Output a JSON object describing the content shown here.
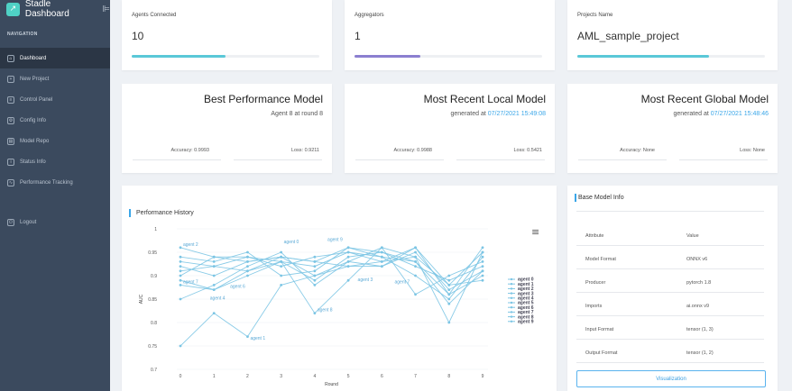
{
  "app": {
    "title": "Stadle Dashboard",
    "logo_glyph": "↗",
    "toggle_glyph": "⊫"
  },
  "nav": {
    "heading": "NAVIGATION",
    "items": [
      {
        "label": "Dashboard",
        "icon": "home-icon",
        "glyph": "⌂",
        "active": true
      },
      {
        "label": "New Project",
        "icon": "plus-icon",
        "glyph": "+"
      },
      {
        "label": "Control Panel",
        "icon": "sliders-icon",
        "glyph": "≡"
      },
      {
        "label": "Config Info",
        "icon": "gear-icon",
        "glyph": "⚙"
      },
      {
        "label": "Model Repo",
        "icon": "database-icon",
        "glyph": "▤"
      },
      {
        "label": "Status Info",
        "icon": "info-icon",
        "glyph": "i"
      },
      {
        "label": "Performance Tracking",
        "icon": "chart-icon",
        "glyph": "∿"
      }
    ],
    "logout": {
      "label": "Logout",
      "icon": "power-icon",
      "glyph": "⏻"
    }
  },
  "stats": [
    {
      "label": "Agents Connected",
      "value": "10",
      "progress": 0.5,
      "color": "#5ac8d8"
    },
    {
      "label": "Aggregators",
      "value": "1",
      "progress": 0.35,
      "color": "#8b7fd0"
    },
    {
      "label": "Projects Name",
      "value": "AML_sample_project",
      "progress": 0.7,
      "color": "#5ac8d8"
    }
  ],
  "models": [
    {
      "title": "Best Performance Model",
      "sub_prefix": "Agent 8 at round 8",
      "date": "",
      "acc_label": "Accuracy:",
      "acc": "0.9993",
      "loss_label": "Loss:",
      "loss": "0.9211"
    },
    {
      "title": "Most Recent Local Model",
      "sub_prefix": "generated at",
      "date": "07/27/2021 15:49:08",
      "acc_label": "Accuracy:",
      "acc": "0.9988",
      "loss_label": "Loss:",
      "loss": "0.5421"
    },
    {
      "title": "Most Recent Global Model",
      "sub_prefix": "generated at",
      "date": "07/27/2021 15:48:46",
      "acc_label": "Accuracy:",
      "acc": "None",
      "loss_label": "Loss:",
      "loss": "None"
    }
  ],
  "perf": {
    "title": "Performance History",
    "menu_glyph": "≡"
  },
  "chart_data": {
    "type": "line",
    "xlabel": "Round",
    "ylabel": "AUC",
    "x": [
      0,
      1,
      2,
      3,
      4,
      5,
      6,
      7,
      8,
      9
    ],
    "ylim": [
      0.7,
      1.0
    ],
    "yticks": [
      "0.7",
      "0.75",
      "0.8",
      "0.85",
      "0.9",
      "0.95",
      "1"
    ],
    "legend_position": "right",
    "color": "#7cc5e4",
    "series": [
      {
        "name": "agent 0",
        "values": [
          0.91,
          0.92,
          0.91,
          0.94,
          0.93,
          0.96,
          0.95,
          0.92,
          0.89,
          0.92
        ]
      },
      {
        "name": "agent 1",
        "values": [
          0.75,
          0.82,
          0.77,
          0.88,
          0.9,
          0.92,
          0.93,
          0.96,
          0.86,
          0.96
        ]
      },
      {
        "name": "agent 2",
        "values": [
          0.96,
          0.94,
          0.93,
          0.94,
          0.9,
          0.93,
          0.92,
          0.95,
          0.87,
          0.91
        ]
      },
      {
        "name": "agent 3",
        "values": [
          0.88,
          0.87,
          0.91,
          0.93,
          0.92,
          0.95,
          0.94,
          0.9,
          0.85,
          0.94
        ]
      },
      {
        "name": "agent 4",
        "values": [
          0.85,
          0.88,
          0.92,
          0.95,
          0.88,
          0.93,
          0.96,
          0.86,
          0.9,
          0.93
        ]
      },
      {
        "name": "agent 5",
        "values": [
          0.9,
          0.94,
          0.94,
          0.92,
          0.94,
          0.95,
          0.93,
          0.94,
          0.88,
          0.95
        ]
      },
      {
        "name": "agent 6",
        "values": [
          0.93,
          0.92,
          0.94,
          0.93,
          0.89,
          0.94,
          0.95,
          0.93,
          0.86,
          0.9
        ]
      },
      {
        "name": "agent 7",
        "values": [
          0.92,
          0.9,
          0.93,
          0.94,
          0.93,
          0.92,
          0.92,
          0.96,
          0.88,
          0.89
        ]
      },
      {
        "name": "agent 8",
        "values": [
          0.89,
          0.87,
          0.9,
          0.93,
          0.82,
          0.89,
          0.96,
          0.94,
          0.8,
          0.95
        ]
      },
      {
        "name": "agent 9",
        "values": [
          0.94,
          0.93,
          0.95,
          0.9,
          0.91,
          0.96,
          0.94,
          0.93,
          0.84,
          0.91
        ]
      }
    ],
    "annotations": [
      {
        "text": "agent 2",
        "x": 0,
        "y": 0.96
      },
      {
        "text": "agent 0",
        "x": 3,
        "y": 0.965
      },
      {
        "text": "agent 9",
        "x": 4.3,
        "y": 0.97
      },
      {
        "text": "agent 7",
        "x": 0,
        "y": 0.88
      },
      {
        "text": "agent 4",
        "x": 0.8,
        "y": 0.845
      },
      {
        "text": "agent 6",
        "x": 1.4,
        "y": 0.87
      },
      {
        "text": "agent 3",
        "x": 5.2,
        "y": 0.885
      },
      {
        "text": "agent 7",
        "x": 6.3,
        "y": 0.88
      },
      {
        "text": "agent 8",
        "x": 4.0,
        "y": 0.82
      },
      {
        "text": "agent 1",
        "x": 2.0,
        "y": 0.76
      }
    ]
  },
  "base_model": {
    "title": "Base Model Info",
    "headers": [
      "Attribute",
      "Value"
    ],
    "rows": [
      [
        "Model Format",
        "ONNX v6"
      ],
      [
        "Producer",
        "pytorch 1.8"
      ],
      [
        "Imports",
        "ai.onnx v9"
      ],
      [
        "Input Format",
        "tensor (1, 3)"
      ],
      [
        "Output Format",
        "tensor (1, 2)"
      ]
    ],
    "button": "Visualization"
  }
}
